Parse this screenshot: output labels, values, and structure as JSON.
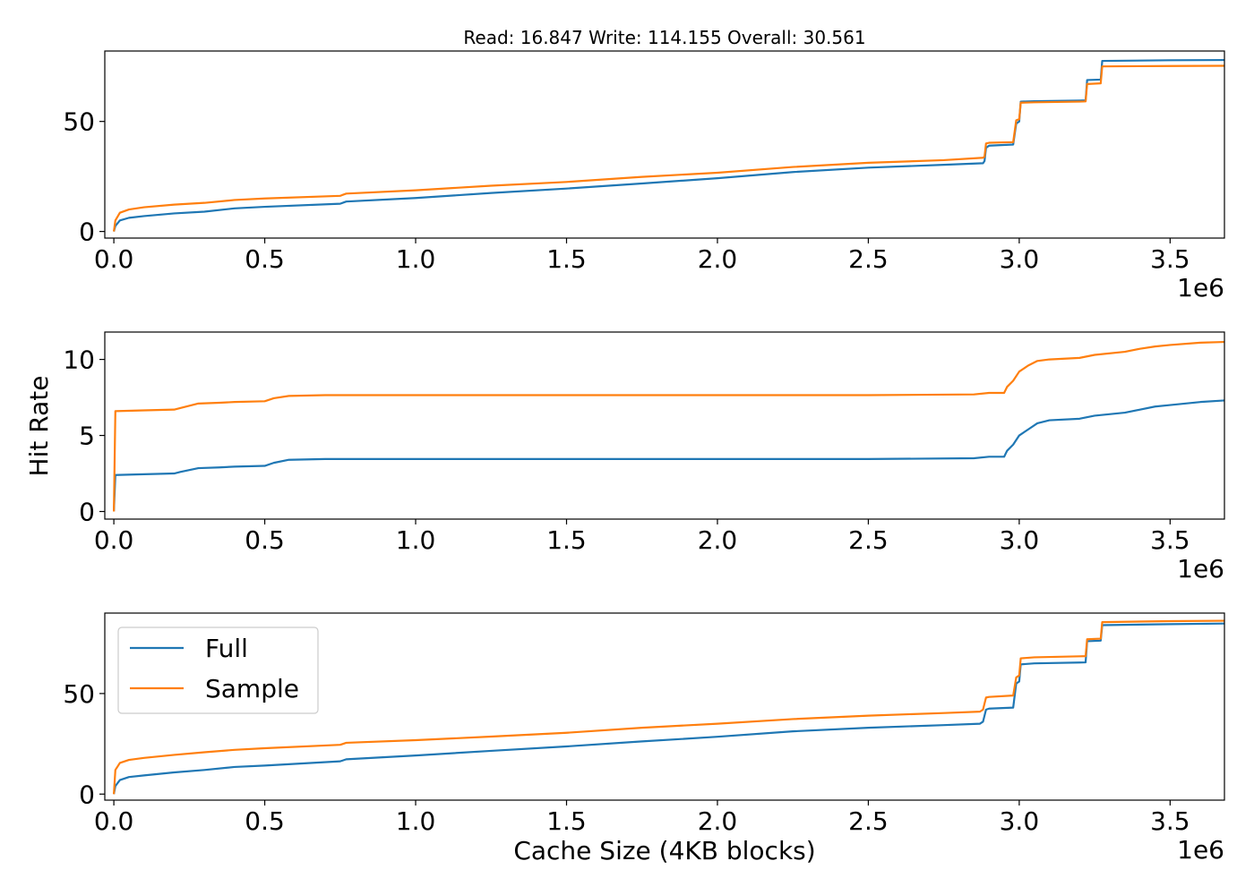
{
  "figure": {
    "title": "Read: 16.847 Write: 114.155 Overall: 30.561",
    "ylabel": "Hit Rate",
    "xlabel": "Cache Size (4KB blocks)",
    "x_offset_label": "1e6"
  },
  "legend": {
    "placement": "upper-left",
    "entries": [
      {
        "label": "Full",
        "color": "#1f77b4"
      },
      {
        "label": "Sample",
        "color": "#ff7f0e"
      }
    ]
  },
  "chart_data": [
    {
      "type": "line",
      "title": "Read: 16.847 Write: 114.155 Overall: 30.561",
      "xlabel": "",
      "ylabel": "",
      "x_scale_label": "1e6",
      "xlim": [
        -0.03,
        3.68
      ],
      "ylim": [
        -3,
        82
      ],
      "x_ticks": [
        0.0,
        0.5,
        1.0,
        1.5,
        2.0,
        2.5,
        3.0,
        3.5
      ],
      "x_tick_labels": [
        "0.0",
        "0.5",
        "1.0",
        "1.5",
        "2.0",
        "2.5",
        "3.0",
        "3.5"
      ],
      "y_ticks": [
        0,
        50
      ],
      "y_tick_labels": [
        "0",
        "50"
      ],
      "grid": false,
      "series": [
        {
          "name": "Full",
          "color": "#1f77b4",
          "points": [
            [
              0.0,
              0
            ],
            [
              0.005,
              2.5
            ],
            [
              0.02,
              5
            ],
            [
              0.05,
              6.2
            ],
            [
              0.1,
              7
            ],
            [
              0.2,
              8.2
            ],
            [
              0.3,
              9
            ],
            [
              0.4,
              10.5
            ],
            [
              0.5,
              11.2
            ],
            [
              0.75,
              12.6
            ],
            [
              0.77,
              13.6
            ],
            [
              1.0,
              15.2
            ],
            [
              1.25,
              17.5
            ],
            [
              1.5,
              19.5
            ],
            [
              1.75,
              21.8
            ],
            [
              2.0,
              24.2
            ],
            [
              2.25,
              27
            ],
            [
              2.5,
              29
            ],
            [
              2.75,
              30.3
            ],
            [
              2.88,
              31
            ],
            [
              2.885,
              32
            ],
            [
              2.89,
              38
            ],
            [
              2.9,
              39
            ],
            [
              2.98,
              39.5
            ],
            [
              2.99,
              49
            ],
            [
              3.0,
              50
            ],
            [
              3.005,
              59
            ],
            [
              3.05,
              59.2
            ],
            [
              3.2,
              59.5
            ],
            [
              3.22,
              59.6
            ],
            [
              3.225,
              68.8
            ],
            [
              3.27,
              69
            ],
            [
              3.275,
              77.5
            ],
            [
              3.5,
              77.8
            ],
            [
              3.68,
              77.9
            ]
          ]
        },
        {
          "name": "Sample",
          "color": "#ff7f0e",
          "points": [
            [
              0.0,
              0
            ],
            [
              0.005,
              5
            ],
            [
              0.02,
              8.5
            ],
            [
              0.05,
              10
            ],
            [
              0.1,
              11
            ],
            [
              0.2,
              12.2
            ],
            [
              0.3,
              13
            ],
            [
              0.4,
              14.3
            ],
            [
              0.5,
              15
            ],
            [
              0.75,
              16.2
            ],
            [
              0.77,
              17.2
            ],
            [
              1.0,
              18.7
            ],
            [
              1.25,
              20.8
            ],
            [
              1.5,
              22.5
            ],
            [
              1.75,
              24.8
            ],
            [
              2.0,
              26.7
            ],
            [
              2.25,
              29.3
            ],
            [
              2.5,
              31.2
            ],
            [
              2.75,
              32.4
            ],
            [
              2.88,
              33.5
            ],
            [
              2.885,
              34
            ],
            [
              2.89,
              40
            ],
            [
              2.9,
              40.3
            ],
            [
              2.98,
              40.6
            ],
            [
              2.99,
              50.5
            ],
            [
              3.0,
              51
            ],
            [
              3.005,
              58.5
            ],
            [
              3.05,
              58.7
            ],
            [
              3.2,
              59
            ],
            [
              3.22,
              59.1
            ],
            [
              3.225,
              67
            ],
            [
              3.27,
              67.3
            ],
            [
              3.275,
              75
            ],
            [
              3.5,
              75.2
            ],
            [
              3.68,
              75.3
            ]
          ]
        }
      ]
    },
    {
      "type": "line",
      "title": "",
      "xlabel": "",
      "ylabel": "Hit Rate",
      "x_scale_label": "1e6",
      "xlim": [
        -0.03,
        3.68
      ],
      "ylim": [
        -0.5,
        11.8
      ],
      "x_ticks": [
        0.0,
        0.5,
        1.0,
        1.5,
        2.0,
        2.5,
        3.0,
        3.5
      ],
      "x_tick_labels": [
        "0.0",
        "0.5",
        "1.0",
        "1.5",
        "2.0",
        "2.5",
        "3.0",
        "3.5"
      ],
      "y_ticks": [
        0,
        5,
        10
      ],
      "y_tick_labels": [
        "0",
        "5",
        "10"
      ],
      "grid": false,
      "series": [
        {
          "name": "Full",
          "color": "#1f77b4",
          "points": [
            [
              0.0,
              0
            ],
            [
              0.005,
              2.4
            ],
            [
              0.1,
              2.45
            ],
            [
              0.2,
              2.5
            ],
            [
              0.22,
              2.6
            ],
            [
              0.28,
              2.85
            ],
            [
              0.35,
              2.9
            ],
            [
              0.4,
              2.95
            ],
            [
              0.5,
              3.0
            ],
            [
              0.53,
              3.2
            ],
            [
              0.58,
              3.4
            ],
            [
              0.7,
              3.45
            ],
            [
              2.0,
              3.45
            ],
            [
              2.5,
              3.45
            ],
            [
              2.85,
              3.5
            ],
            [
              2.9,
              3.6
            ],
            [
              2.95,
              3.6
            ],
            [
              2.96,
              4.0
            ],
            [
              2.98,
              4.4
            ],
            [
              3.0,
              5.0
            ],
            [
              3.03,
              5.4
            ],
            [
              3.06,
              5.8
            ],
            [
              3.1,
              6.0
            ],
            [
              3.2,
              6.1
            ],
            [
              3.25,
              6.3
            ],
            [
              3.35,
              6.5
            ],
            [
              3.4,
              6.7
            ],
            [
              3.45,
              6.9
            ],
            [
              3.5,
              7.0
            ],
            [
              3.6,
              7.2
            ],
            [
              3.68,
              7.3
            ]
          ]
        },
        {
          "name": "Sample",
          "color": "#ff7f0e",
          "points": [
            [
              0.0,
              0
            ],
            [
              0.005,
              6.6
            ],
            [
              0.1,
              6.65
            ],
            [
              0.2,
              6.7
            ],
            [
              0.22,
              6.8
            ],
            [
              0.28,
              7.1
            ],
            [
              0.35,
              7.15
            ],
            [
              0.4,
              7.2
            ],
            [
              0.5,
              7.25
            ],
            [
              0.53,
              7.45
            ],
            [
              0.58,
              7.6
            ],
            [
              0.7,
              7.65
            ],
            [
              2.0,
              7.65
            ],
            [
              2.5,
              7.65
            ],
            [
              2.85,
              7.7
            ],
            [
              2.9,
              7.8
            ],
            [
              2.95,
              7.8
            ],
            [
              2.96,
              8.2
            ],
            [
              2.98,
              8.6
            ],
            [
              3.0,
              9.2
            ],
            [
              3.03,
              9.6
            ],
            [
              3.06,
              9.9
            ],
            [
              3.1,
              10.0
            ],
            [
              3.2,
              10.1
            ],
            [
              3.25,
              10.3
            ],
            [
              3.35,
              10.5
            ],
            [
              3.4,
              10.7
            ],
            [
              3.45,
              10.85
            ],
            [
              3.5,
              10.95
            ],
            [
              3.6,
              11.1
            ],
            [
              3.68,
              11.15
            ]
          ]
        }
      ]
    },
    {
      "type": "line",
      "title": "",
      "xlabel": "Cache Size (4KB blocks)",
      "ylabel": "",
      "x_scale_label": "1e6",
      "xlim": [
        -0.03,
        3.68
      ],
      "ylim": [
        -3,
        90
      ],
      "x_ticks": [
        0.0,
        0.5,
        1.0,
        1.5,
        2.0,
        2.5,
        3.0,
        3.5
      ],
      "x_tick_labels": [
        "0.0",
        "0.5",
        "1.0",
        "1.5",
        "2.0",
        "2.5",
        "3.0",
        "3.5"
      ],
      "y_ticks": [
        0,
        50
      ],
      "y_tick_labels": [
        "0",
        "50"
      ],
      "grid": false,
      "legend": true,
      "series": [
        {
          "name": "Full",
          "color": "#1f77b4",
          "points": [
            [
              0.0,
              0
            ],
            [
              0.005,
              4
            ],
            [
              0.02,
              7
            ],
            [
              0.05,
              8.5
            ],
            [
              0.1,
              9.3
            ],
            [
              0.2,
              10.8
            ],
            [
              0.3,
              12
            ],
            [
              0.4,
              13.5
            ],
            [
              0.5,
              14.2
            ],
            [
              0.75,
              16.3
            ],
            [
              0.77,
              17.3
            ],
            [
              1.0,
              19.2
            ],
            [
              1.25,
              21.5
            ],
            [
              1.5,
              23.7
            ],
            [
              1.75,
              26.2
            ],
            [
              2.0,
              28.5
            ],
            [
              2.25,
              31.2
            ],
            [
              2.5,
              33
            ],
            [
              2.75,
              34.3
            ],
            [
              2.87,
              35
            ],
            [
              2.88,
              36
            ],
            [
              2.89,
              42
            ],
            [
              2.9,
              42.5
            ],
            [
              2.98,
              43
            ],
            [
              2.99,
              55
            ],
            [
              3.0,
              56
            ],
            [
              3.005,
              64.5
            ],
            [
              3.05,
              65
            ],
            [
              3.2,
              65.4
            ],
            [
              3.22,
              65.5
            ],
            [
              3.225,
              76
            ],
            [
              3.27,
              76.3
            ],
            [
              3.275,
              84
            ],
            [
              3.5,
              84.5
            ],
            [
              3.68,
              84.8
            ]
          ]
        },
        {
          "name": "Sample",
          "color": "#ff7f0e",
          "points": [
            [
              0.0,
              0
            ],
            [
              0.005,
              12
            ],
            [
              0.02,
              15.5
            ],
            [
              0.05,
              17
            ],
            [
              0.1,
              18
            ],
            [
              0.2,
              19.5
            ],
            [
              0.3,
              20.8
            ],
            [
              0.4,
              22
            ],
            [
              0.5,
              22.8
            ],
            [
              0.75,
              24.5
            ],
            [
              0.77,
              25.5
            ],
            [
              1.0,
              26.8
            ],
            [
              1.25,
              28.6
            ],
            [
              1.5,
              30.5
            ],
            [
              1.75,
              33
            ],
            [
              2.0,
              35
            ],
            [
              2.25,
              37.3
            ],
            [
              2.5,
              39
            ],
            [
              2.75,
              40.3
            ],
            [
              2.87,
              41
            ],
            [
              2.88,
              42
            ],
            [
              2.89,
              48
            ],
            [
              2.9,
              48.3
            ],
            [
              2.98,
              49
            ],
            [
              2.99,
              58
            ],
            [
              3.0,
              59
            ],
            [
              3.005,
              67.5
            ],
            [
              3.05,
              68
            ],
            [
              3.2,
              68.5
            ],
            [
              3.22,
              68.6
            ],
            [
              3.225,
              77
            ],
            [
              3.27,
              77.3
            ],
            [
              3.275,
              85.5
            ],
            [
              3.5,
              86
            ],
            [
              3.68,
              86.2
            ]
          ]
        }
      ]
    }
  ]
}
